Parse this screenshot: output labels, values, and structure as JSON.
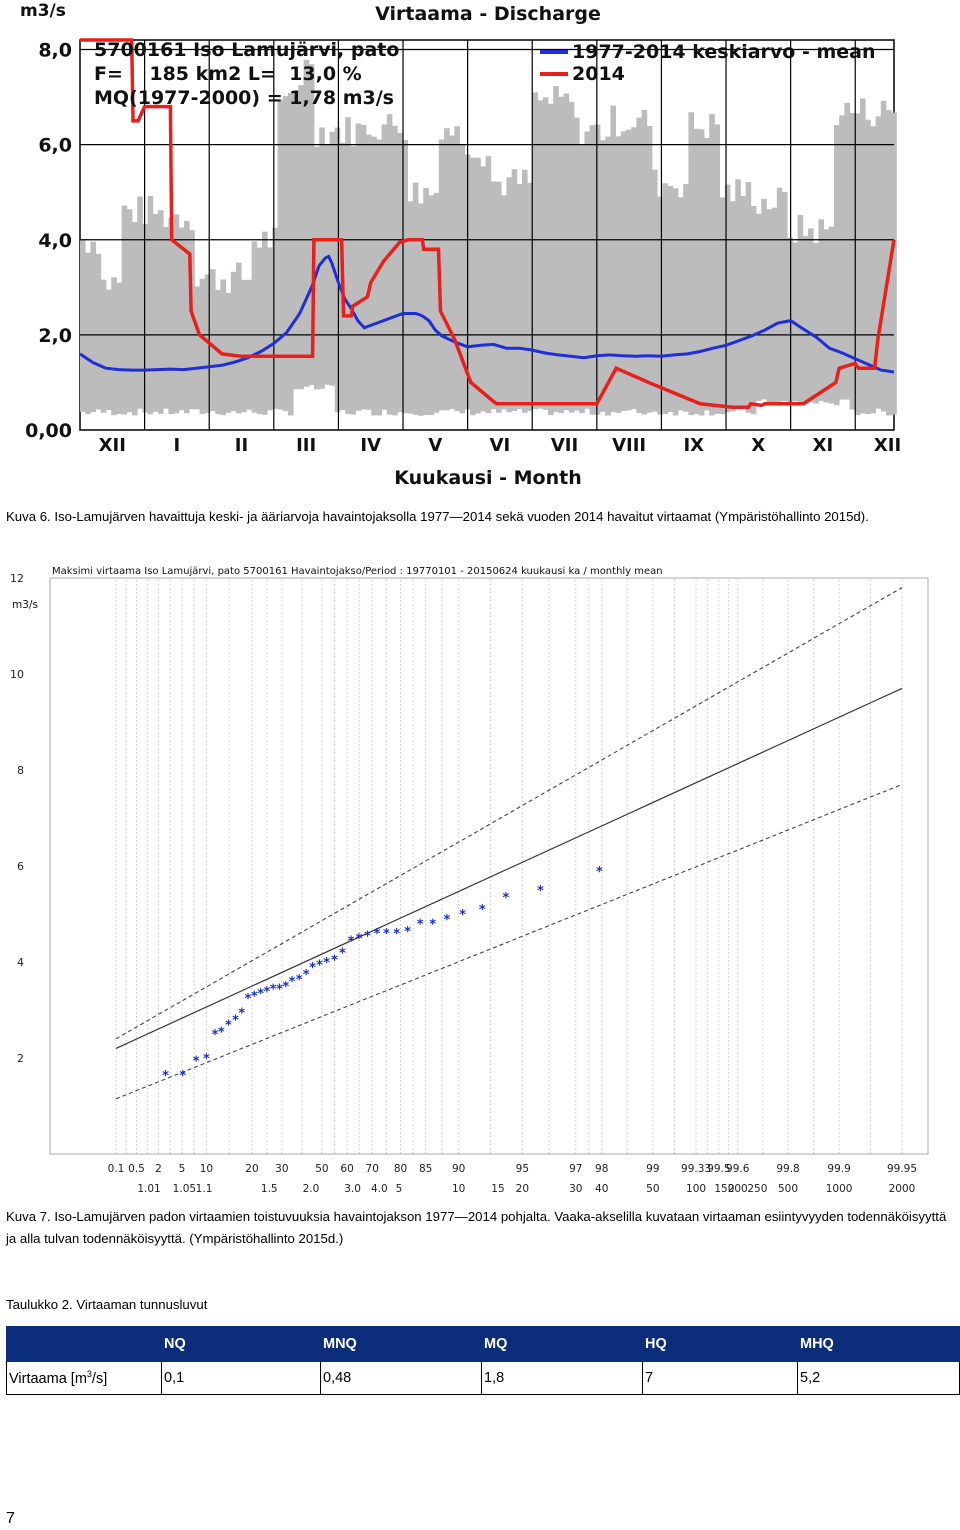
{
  "figure1": {
    "title": "Virtaama - Discharge",
    "y_unit": "m3/s",
    "x_title": "Kuukausi - Month",
    "info_lines": [
      "5700161 Iso Lamujärvi, pato",
      "F=    185 km2 L=  13,0 %",
      "MQ(1977-2000) = 1,78 m3/s"
    ],
    "chart_data": {
      "type": "line",
      "y_ticks": [
        "0,00",
        "2,0",
        "4,0",
        "6,0",
        "8,0"
      ],
      "ylim": [
        0,
        8.2
      ],
      "month_labels": [
        "XII",
        "I",
        "II",
        "III",
        "IV",
        "V",
        "VI",
        "VII",
        "VIII",
        "IX",
        "X",
        "XI",
        "XII"
      ],
      "grid": true,
      "legend_position": "top-right",
      "series": [
        {
          "name": "1977-2014 keskiarvo - mean",
          "color": "#1f2ed6",
          "x": [
            0,
            0.2,
            0.4,
            0.6,
            0.8,
            1.0,
            1.2,
            1.4,
            1.6,
            1.8,
            2.0,
            2.2,
            2.4,
            2.6,
            2.8,
            3.0,
            3.2,
            3.4,
            3.6,
            3.7,
            3.8,
            3.85,
            3.9,
            4.0,
            4.1,
            4.2,
            4.3,
            4.4,
            4.5,
            4.6,
            4.8,
            5.0,
            5.2,
            5.3,
            5.4,
            5.5,
            5.6,
            5.8,
            6.0,
            6.2,
            6.4,
            6.6,
            6.8,
            7.0,
            7.2,
            7.4,
            7.6,
            7.8,
            8.0,
            8.2,
            8.4,
            8.6,
            8.8,
            9.0,
            9.2,
            9.4,
            9.6,
            9.8,
            10.0,
            10.2,
            10.4,
            10.6,
            10.8,
            11.0,
            11.2,
            11.4,
            11.6,
            11.8,
            12.0,
            12.2,
            12.4,
            12.6
          ],
          "values": [
            1.6,
            1.42,
            1.3,
            1.27,
            1.26,
            1.26,
            1.27,
            1.28,
            1.27,
            1.3,
            1.33,
            1.36,
            1.43,
            1.52,
            1.65,
            1.82,
            2.05,
            2.45,
            3.05,
            3.45,
            3.62,
            3.65,
            3.5,
            3.1,
            2.75,
            2.55,
            2.3,
            2.15,
            2.2,
            2.25,
            2.35,
            2.45,
            2.45,
            2.4,
            2.3,
            2.1,
            1.98,
            1.85,
            1.75,
            1.78,
            1.8,
            1.72,
            1.72,
            1.68,
            1.62,
            1.58,
            1.55,
            1.52,
            1.56,
            1.58,
            1.56,
            1.55,
            1.56,
            1.55,
            1.58,
            1.6,
            1.65,
            1.72,
            1.78,
            1.88,
            1.98,
            2.1,
            2.25,
            2.3,
            2.12,
            1.95,
            1.72,
            1.62,
            1.5,
            1.38,
            1.26,
            1.22
          ]
        },
        {
          "name": "2014",
          "color": "#e8201c",
          "x": [
            0,
            0.6,
            0.62,
            0.8,
            0.82,
            0.9,
            1.0,
            1.2,
            1.4,
            1.42,
            1.7,
            1.72,
            1.85,
            2.2,
            2.5,
            2.8,
            3.0,
            3.3,
            3.6,
            3.62,
            4.05,
            4.08,
            4.2,
            4.22,
            4.45,
            4.5,
            4.7,
            4.95,
            5.08,
            5.2,
            5.3,
            5.32,
            5.55,
            5.58,
            5.8,
            6.05,
            6.4,
            6.45,
            6.7,
            6.75,
            7.0,
            7.2,
            7.7,
            8.0,
            8.3,
            8.8,
            9.6,
            10.1,
            10.15,
            10.35,
            10.38,
            10.55,
            10.6,
            10.7,
            11.0,
            11.2,
            11.25,
            11.7,
            11.75,
            12.0,
            12.05,
            12.3,
            12.35,
            12.6
          ],
          "values": [
            8.3,
            8.3,
            8.3,
            8.3,
            6.5,
            6.5,
            6.8,
            6.8,
            6.8,
            4.0,
            3.7,
            2.5,
            2.0,
            1.6,
            1.55,
            1.55,
            1.55,
            1.55,
            1.55,
            4.0,
            4.0,
            2.4,
            2.4,
            2.6,
            2.8,
            3.1,
            3.55,
            3.95,
            4.0,
            4.0,
            4.0,
            3.8,
            3.8,
            2.5,
            1.9,
            1.0,
            0.6,
            0.55,
            0.55,
            0.55,
            0.55,
            0.55,
            0.55,
            0.55,
            1.3,
            1.0,
            0.55,
            0.48,
            0.48,
            0.48,
            0.55,
            0.52,
            0.55,
            0.55,
            0.55,
            0.55,
            0.6,
            1.0,
            1.3,
            1.4,
            1.3,
            1.3,
            1.9,
            4.0
          ]
        }
      ]
    }
  },
  "caption1": "Kuva 6. Iso-Lamujärven havaittuja keski- ja ääriarvoja havaintojaksolla 1977—2014 sekä vuoden 2014 havaitut virtaamat (Ympäristöhallinto 2015d).",
  "figure2": {
    "title": "Maksimi virtaama Iso Lamujärvi, pato   5700161 Havaintojakso/Period : 19770101 - 20150624  kuukausi ka / monthly mean",
    "y_unit": "m3/s",
    "chart_data": {
      "type": "scatter",
      "y_ticks": [
        "2",
        "4",
        "6",
        "8",
        "10",
        "12"
      ],
      "ylim": [
        0,
        12
      ],
      "x_ticks_top": [
        "0.1",
        "0.5",
        "2",
        "5",
        "10",
        "20",
        "30",
        "50",
        "60",
        "70",
        "80",
        "85",
        "90",
        "95",
        "97",
        "98",
        "99",
        "99.33",
        "99.5",
        "99.6",
        "99.8",
        "99.9",
        "99.95"
      ],
      "x_ticks_bottom": [
        "1.01",
        "1.05",
        "1.1",
        "1.5",
        "2.0",
        "3.0",
        "4.0",
        "5",
        "10",
        "15",
        "20",
        "30",
        "40",
        "50",
        "100",
        "150",
        "200",
        "250",
        "500",
        "1000",
        "2000"
      ],
      "points_y": [
        1.65,
        1.65,
        1.95,
        2.0,
        2.5,
        2.55,
        2.7,
        2.8,
        2.95,
        3.25,
        3.3,
        3.35,
        3.4,
        3.45,
        3.45,
        3.5,
        3.6,
        3.65,
        3.75,
        3.9,
        3.95,
        4.0,
        4.05,
        4.2,
        4.45,
        4.5,
        4.55,
        4.6,
        4.6,
        4.6,
        4.65,
        4.8,
        4.8,
        4.9,
        5.0,
        5.1,
        5.35,
        5.5,
        5.9
      ],
      "fit_line": [
        [
          0,
          2.2
        ],
        [
          100,
          9.7
        ]
      ],
      "upper_bound": [
        [
          0,
          2.4
        ],
        [
          100,
          11.8
        ]
      ],
      "lower_bound": [
        [
          0,
          1.15
        ],
        [
          100,
          7.7
        ]
      ]
    }
  },
  "caption2": "Kuva 7. Iso-Lamujärven padon virtaamien toistuvuuksia havaintojakson 1977—2014 pohjalta. Vaaka-akselilla kuvataan virtaaman esiintyvyyden todennäköisyyttä ja alla tulvan todennäköisyyttä. (Ympäristöhallinto 2015d.)",
  "table": {
    "caption": "Taulukko 2. Virtaaman tunnusluvut",
    "headers": [
      "",
      "NQ",
      "MNQ",
      "MQ",
      "HQ",
      "MHQ"
    ],
    "row_label_main": "Virtaama [m",
    "row_label_sup": "3",
    "row_label_end": "/s]",
    "values": [
      "0,1",
      "0,48",
      "1,8",
      "7",
      "5,2"
    ]
  },
  "page_number": "7"
}
